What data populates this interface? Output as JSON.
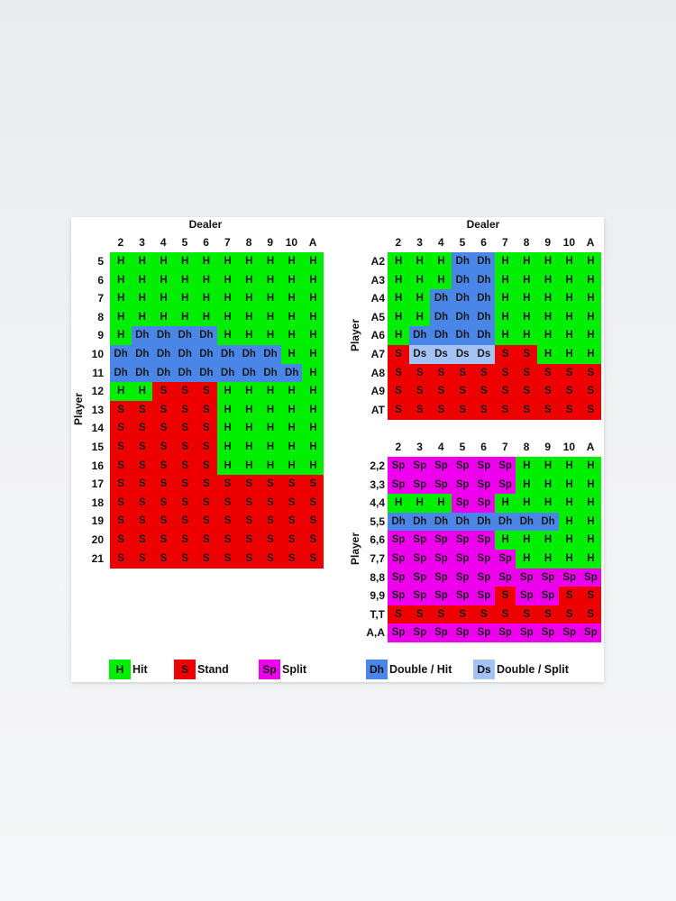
{
  "colors": {
    "H": "#00ee00",
    "S": "#ee0000",
    "Sp": "#ee00ee",
    "Dh": "#4a86e8",
    "Ds": "#a4c2f4"
  },
  "dealer_columns": [
    "2",
    "3",
    "4",
    "5",
    "6",
    "7",
    "8",
    "9",
    "10",
    "A"
  ],
  "hard_totals": {
    "title": "Dealer",
    "ylabel": "Player",
    "rows": [
      {
        "label": "5",
        "cells": [
          "H",
          "H",
          "H",
          "H",
          "H",
          "H",
          "H",
          "H",
          "H",
          "H"
        ]
      },
      {
        "label": "6",
        "cells": [
          "H",
          "H",
          "H",
          "H",
          "H",
          "H",
          "H",
          "H",
          "H",
          "H"
        ]
      },
      {
        "label": "7",
        "cells": [
          "H",
          "H",
          "H",
          "H",
          "H",
          "H",
          "H",
          "H",
          "H",
          "H"
        ]
      },
      {
        "label": "8",
        "cells": [
          "H",
          "H",
          "H",
          "H",
          "H",
          "H",
          "H",
          "H",
          "H",
          "H"
        ]
      },
      {
        "label": "9",
        "cells": [
          "H",
          "Dh",
          "Dh",
          "Dh",
          "Dh",
          "H",
          "H",
          "H",
          "H",
          "H"
        ]
      },
      {
        "label": "10",
        "cells": [
          "Dh",
          "Dh",
          "Dh",
          "Dh",
          "Dh",
          "Dh",
          "Dh",
          "Dh",
          "H",
          "H"
        ]
      },
      {
        "label": "11",
        "cells": [
          "Dh",
          "Dh",
          "Dh",
          "Dh",
          "Dh",
          "Dh",
          "Dh",
          "Dh",
          "Dh",
          "H"
        ]
      },
      {
        "label": "12",
        "cells": [
          "H",
          "H",
          "S",
          "S",
          "S",
          "H",
          "H",
          "H",
          "H",
          "H"
        ]
      },
      {
        "label": "13",
        "cells": [
          "S",
          "S",
          "S",
          "S",
          "S",
          "H",
          "H",
          "H",
          "H",
          "H"
        ]
      },
      {
        "label": "14",
        "cells": [
          "S",
          "S",
          "S",
          "S",
          "S",
          "H",
          "H",
          "H",
          "H",
          "H"
        ]
      },
      {
        "label": "15",
        "cells": [
          "S",
          "S",
          "S",
          "S",
          "S",
          "H",
          "H",
          "H",
          "H",
          "H"
        ]
      },
      {
        "label": "16",
        "cells": [
          "S",
          "S",
          "S",
          "S",
          "S",
          "H",
          "H",
          "H",
          "H",
          "H"
        ]
      },
      {
        "label": "17",
        "cells": [
          "S",
          "S",
          "S",
          "S",
          "S",
          "S",
          "S",
          "S",
          "S",
          "S"
        ]
      },
      {
        "label": "18",
        "cells": [
          "S",
          "S",
          "S",
          "S",
          "S",
          "S",
          "S",
          "S",
          "S",
          "S"
        ]
      },
      {
        "label": "19",
        "cells": [
          "S",
          "S",
          "S",
          "S",
          "S",
          "S",
          "S",
          "S",
          "S",
          "S"
        ]
      },
      {
        "label": "20",
        "cells": [
          "S",
          "S",
          "S",
          "S",
          "S",
          "S",
          "S",
          "S",
          "S",
          "S"
        ]
      },
      {
        "label": "21",
        "cells": [
          "S",
          "S",
          "S",
          "S",
          "S",
          "S",
          "S",
          "S",
          "S",
          "S"
        ]
      }
    ]
  },
  "soft_totals": {
    "title": "Dealer",
    "ylabel": "Player",
    "rows": [
      {
        "label": "A2",
        "cells": [
          "H",
          "H",
          "H",
          "Dh",
          "Dh",
          "H",
          "H",
          "H",
          "H",
          "H"
        ]
      },
      {
        "label": "A3",
        "cells": [
          "H",
          "H",
          "H",
          "Dh",
          "Dh",
          "H",
          "H",
          "H",
          "H",
          "H"
        ]
      },
      {
        "label": "A4",
        "cells": [
          "H",
          "H",
          "Dh",
          "Dh",
          "Dh",
          "H",
          "H",
          "H",
          "H",
          "H"
        ]
      },
      {
        "label": "A5",
        "cells": [
          "H",
          "H",
          "Dh",
          "Dh",
          "Dh",
          "H",
          "H",
          "H",
          "H",
          "H"
        ]
      },
      {
        "label": "A6",
        "cells": [
          "H",
          "Dh",
          "Dh",
          "Dh",
          "Dh",
          "H",
          "H",
          "H",
          "H",
          "H"
        ]
      },
      {
        "label": "A7",
        "cells": [
          "S",
          "Ds",
          "Ds",
          "Ds",
          "Ds",
          "S",
          "S",
          "H",
          "H",
          "H"
        ]
      },
      {
        "label": "A8",
        "cells": [
          "S",
          "S",
          "S",
          "S",
          "S",
          "S",
          "S",
          "S",
          "S",
          "S"
        ]
      },
      {
        "label": "A9",
        "cells": [
          "S",
          "S",
          "S",
          "S",
          "S",
          "S",
          "S",
          "S",
          "S",
          "S"
        ]
      },
      {
        "label": "AT",
        "cells": [
          "S",
          "S",
          "S",
          "S",
          "S",
          "S",
          "S",
          "S",
          "S",
          "S"
        ]
      }
    ]
  },
  "pairs": {
    "ylabel": "Player",
    "rows": [
      {
        "label": "2,2",
        "cells": [
          "Sp",
          "Sp",
          "Sp",
          "Sp",
          "Sp",
          "Sp",
          "H",
          "H",
          "H",
          "H"
        ]
      },
      {
        "label": "3,3",
        "cells": [
          "Sp",
          "Sp",
          "Sp",
          "Sp",
          "Sp",
          "Sp",
          "H",
          "H",
          "H",
          "H"
        ]
      },
      {
        "label": "4,4",
        "cells": [
          "H",
          "H",
          "H",
          "Sp",
          "Sp",
          "H",
          "H",
          "H",
          "H",
          "H"
        ]
      },
      {
        "label": "5,5",
        "cells": [
          "Dh",
          "Dh",
          "Dh",
          "Dh",
          "Dh",
          "Dh",
          "Dh",
          "Dh",
          "H",
          "H"
        ]
      },
      {
        "label": "6,6",
        "cells": [
          "Sp",
          "Sp",
          "Sp",
          "Sp",
          "Sp",
          "H",
          "H",
          "H",
          "H",
          "H"
        ]
      },
      {
        "label": "7,7",
        "cells": [
          "Sp",
          "Sp",
          "Sp",
          "Sp",
          "Sp",
          "Sp",
          "H",
          "H",
          "H",
          "H"
        ]
      },
      {
        "label": "8,8",
        "cells": [
          "Sp",
          "Sp",
          "Sp",
          "Sp",
          "Sp",
          "Sp",
          "Sp",
          "Sp",
          "Sp",
          "Sp"
        ]
      },
      {
        "label": "9,9",
        "cells": [
          "Sp",
          "Sp",
          "Sp",
          "Sp",
          "Sp",
          "S",
          "Sp",
          "Sp",
          "S",
          "S"
        ]
      },
      {
        "label": "T,T",
        "cells": [
          "S",
          "S",
          "S",
          "S",
          "S",
          "S",
          "S",
          "S",
          "S",
          "S"
        ]
      },
      {
        "label": "A,A",
        "cells": [
          "Sp",
          "Sp",
          "Sp",
          "Sp",
          "Sp",
          "Sp",
          "Sp",
          "Sp",
          "Sp",
          "Sp"
        ]
      }
    ]
  },
  "legend": [
    {
      "code": "H",
      "label": "Hit"
    },
    {
      "code": "S",
      "label": "Stand"
    },
    {
      "code": "Sp",
      "label": "Split"
    },
    {
      "code": "Dh",
      "label": "Double / Hit"
    },
    {
      "code": "Ds",
      "label": "Double / Split"
    }
  ]
}
